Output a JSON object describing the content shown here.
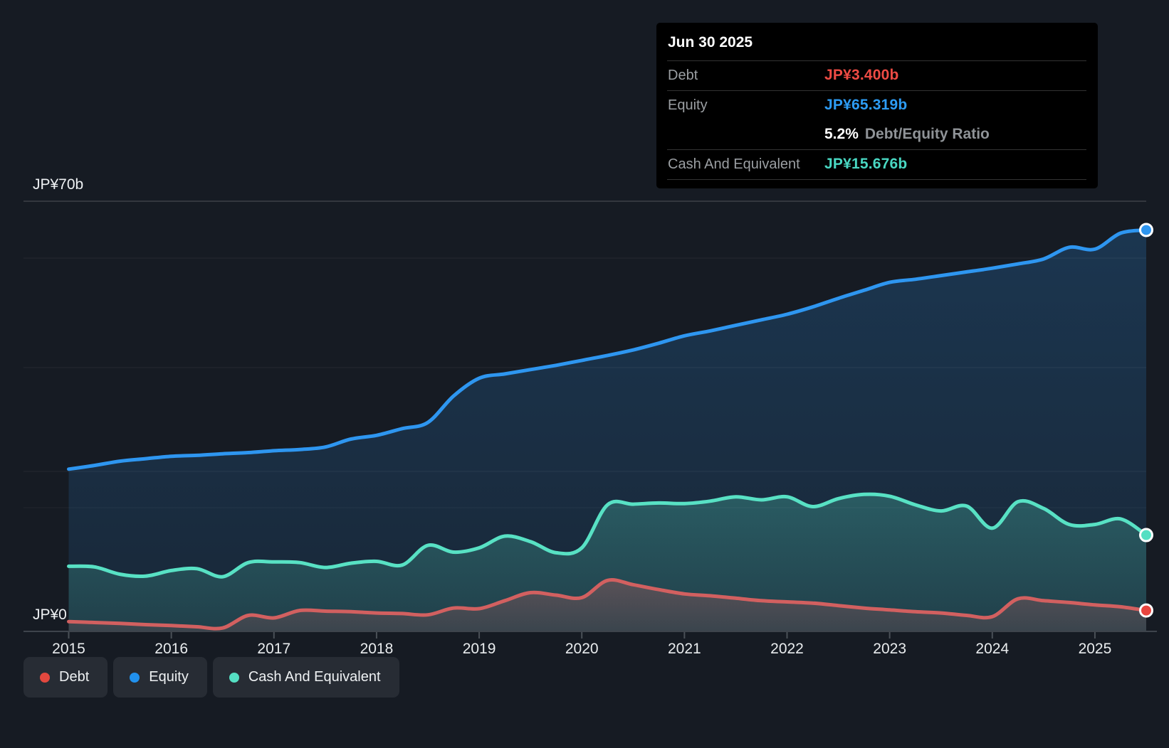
{
  "y_axis": {
    "top_label": "JP¥70b",
    "zero_label": "JP¥0"
  },
  "x_axis": {
    "tick_labels": [
      "2015",
      "2016",
      "2017",
      "2018",
      "2019",
      "2020",
      "2021",
      "2022",
      "2023",
      "2024",
      "2025"
    ]
  },
  "tooltip": {
    "date": "Jun 30 2025",
    "debt_label": "Debt",
    "debt_value": "JP¥3.400b",
    "equity_label": "Equity",
    "equity_value": "JP¥65.319b",
    "ratio_value": "5.2%",
    "ratio_label": "Debt/Equity Ratio",
    "cash_label": "Cash And Equivalent",
    "cash_value": "JP¥15.676b",
    "colors": {
      "debt": "#ee4b44",
      "equity": "#2d9cf4",
      "cash": "#49d7c2"
    }
  },
  "legend": {
    "items": [
      {
        "label": "Debt",
        "color": "#e2483f"
      },
      {
        "label": "Equity",
        "color": "#2191ee"
      },
      {
        "label": "Cash And Equivalent",
        "color": "#55dfc3"
      }
    ]
  },
  "chart_data": {
    "type": "area",
    "title": "Debt to Equity History",
    "currency_prefix": "JP¥",
    "unit_suffix": "b",
    "ylim": [
      0,
      70
    ],
    "xlim": [
      2015,
      2025.5
    ],
    "grid": true,
    "legend_position": "bottom-left",
    "last_point_date": "Jun 30 2025",
    "x_ticks": [
      2015,
      2016,
      2017,
      2018,
      2019,
      2020,
      2021,
      2022,
      2023,
      2024,
      2025
    ],
    "x_years": [
      2015.0,
      2015.25,
      2015.5,
      2015.75,
      2016.0,
      2016.25,
      2016.5,
      2016.75,
      2017.0,
      2017.25,
      2017.5,
      2017.75,
      2018.0,
      2018.25,
      2018.5,
      2018.75,
      2019.0,
      2019.25,
      2019.5,
      2019.75,
      2020.0,
      2020.25,
      2020.5,
      2020.75,
      2021.0,
      2021.25,
      2021.5,
      2021.75,
      2022.0,
      2022.25,
      2022.5,
      2022.75,
      2023.0,
      2023.25,
      2023.5,
      2023.75,
      2024.0,
      2024.25,
      2024.5,
      2024.75,
      2025.0,
      2025.25,
      2025.5
    ],
    "series": [
      {
        "name": "Equity",
        "color": "#2e96f0",
        "dot_color": "#2e96f0",
        "fill_top": "rgba(46,150,240,0.22)",
        "fill_bottom": "rgba(46,150,240,0.10)",
        "last_value": 65.319,
        "values": [
          26.4,
          27.0,
          27.7,
          28.1,
          28.5,
          28.65,
          28.9,
          29.1,
          29.4,
          29.6,
          30.0,
          31.3,
          31.9,
          33.0,
          34.0,
          38.3,
          41.2,
          41.9,
          42.6,
          43.3,
          44.1,
          44.9,
          45.8,
          46.9,
          48.1,
          48.9,
          49.8,
          50.7,
          51.6,
          52.8,
          54.2,
          55.5,
          56.8,
          57.3,
          57.9,
          58.5,
          59.1,
          59.8,
          60.6,
          62.5,
          62.2,
          64.8,
          65.319
        ]
      },
      {
        "name": "Cash And Equivalent",
        "color": "#58e1c4",
        "dot_color": "#55dfc3",
        "fill_top": "rgba(88,225,196,0.26)",
        "fill_bottom": "rgba(88,225,196,0.13)",
        "last_value": 15.676,
        "values": [
          10.6,
          10.5,
          9.3,
          9.0,
          9.9,
          10.2,
          8.9,
          11.2,
          11.3,
          11.2,
          10.4,
          11.1,
          11.4,
          10.8,
          14.0,
          12.9,
          13.6,
          15.5,
          14.6,
          12.8,
          13.6,
          20.6,
          20.7,
          20.9,
          20.8,
          21.2,
          21.9,
          21.4,
          21.9,
          20.3,
          21.6,
          22.3,
          22.0,
          20.6,
          19.6,
          20.4,
          16.8,
          21.1,
          20.0,
          17.4,
          17.4,
          18.3,
          15.676
        ]
      },
      {
        "name": "Debt",
        "color": "#d26060",
        "dot_color": "#e8453f",
        "fill_top": "rgba(212,97,95,0.30)",
        "fill_bottom": "rgba(212,97,95,0.14)",
        "last_value": 3.4,
        "values": [
          1.6,
          1.45,
          1.3,
          1.1,
          0.95,
          0.75,
          0.55,
          2.6,
          2.2,
          3.4,
          3.3,
          3.2,
          3.0,
          2.9,
          2.7,
          3.8,
          3.7,
          5.0,
          6.3,
          5.9,
          5.5,
          8.3,
          7.6,
          6.8,
          6.1,
          5.8,
          5.4,
          5.0,
          4.8,
          4.6,
          4.2,
          3.8,
          3.5,
          3.2,
          3.0,
          2.6,
          2.4,
          5.3,
          5.0,
          4.7,
          4.3,
          4.0,
          3.4
        ]
      }
    ]
  }
}
